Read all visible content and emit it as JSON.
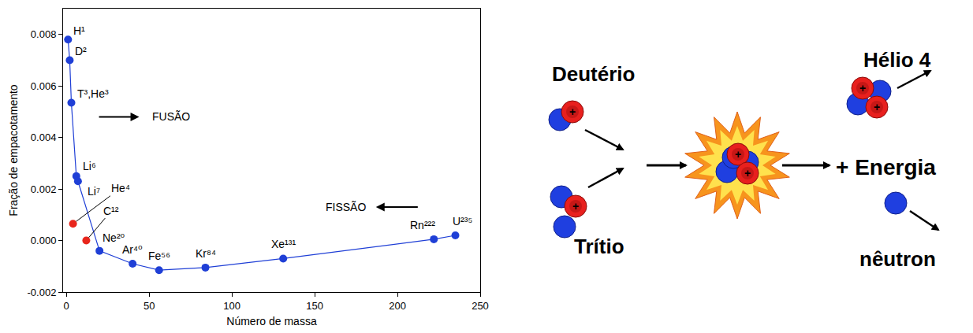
{
  "chart_data": {
    "type": "scatter",
    "x_label": "Número de massa",
    "y_label": "Fração de empacotamento",
    "xlim": [
      -2,
      250
    ],
    "xticks": [
      0,
      50,
      100,
      150,
      200,
      250
    ],
    "ylim": [
      -0.002,
      0.009
    ],
    "yticks": [
      -0.002,
      {
        "value": 0,
        "label": "0.000"
      },
      0.002,
      0.004,
      0.006,
      0.008
    ],
    "grid": false,
    "series": [
      {
        "color": "#1f3fd6",
        "marker": "circle",
        "line_style": "solid",
        "x": [
          1,
          2,
          3,
          6,
          7,
          20,
          40,
          56,
          84,
          131,
          222,
          235
        ],
        "values": [
          0.0078,
          0.007,
          0.00535,
          0.0025,
          0.0023,
          -0.0004,
          -0.0009,
          -0.00115,
          -0.00105,
          -0.0007,
          5e-05,
          0.0002
        ],
        "labels": [
          "H¹",
          "D²",
          "T³,He³",
          "Li⁶",
          "Li⁷",
          "Ne²⁰",
          "Ar⁴⁰",
          "Fe⁵⁶",
          "Kr⁸⁴",
          "Xe¹³¹",
          "Rn²²²",
          "U²³⁵"
        ]
      },
      {
        "color": "#e8261c",
        "marker": "circle",
        "line_style": "none",
        "x": [
          4,
          12
        ],
        "values": [
          0.00065,
          0.0
        ],
        "labels": [
          "He⁴",
          "C¹²"
        ]
      }
    ],
    "annotations": [
      {
        "text": "FUSÃO",
        "direction": "right"
      },
      {
        "text": "FISSÃO",
        "direction": "left"
      }
    ]
  },
  "diagram": {
    "reactants": [
      "Deutério",
      "Trítio"
    ],
    "products": [
      "Hélio 4",
      "nêutron"
    ],
    "energy_label": "+ Energia",
    "proton_sign": "+"
  }
}
